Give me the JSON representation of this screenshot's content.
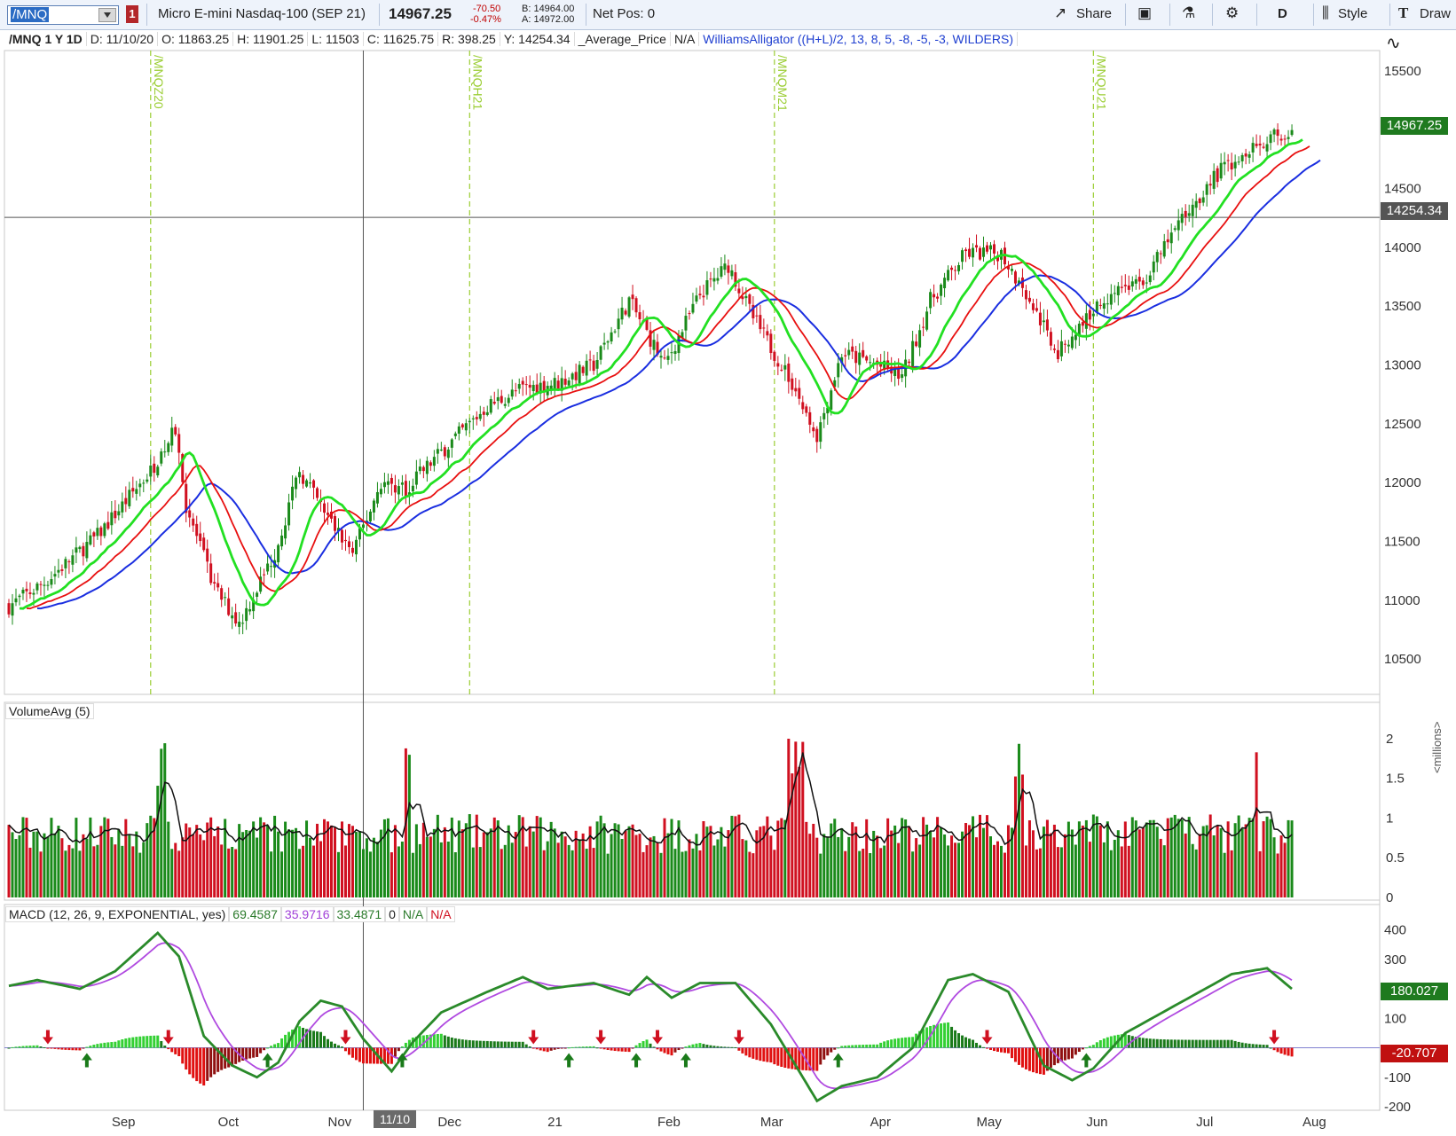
{
  "toolbar": {
    "symbol": "/MNQ",
    "link_badge": "1",
    "description": "Micro E-mini Nasdaq-100 (SEP 21)",
    "last": "14967.25",
    "change": "-70.50",
    "change_pct": "-0.47%",
    "bid": "B: 14964.00",
    "ask": "A: 14972.00",
    "net_pos": "Net Pos: 0",
    "share_label": "Share",
    "aggregation": "D",
    "style_label": "Style",
    "draw_label": "Draw"
  },
  "header": {
    "symbol_period": "/MNQ 1 Y 1D",
    "date": "D: 11/10/20",
    "open": "O: 11863.25",
    "high": "H: 11901.25",
    "low": "L: 11503",
    "close": "C: 11625.75",
    "range": "R: 398.25",
    "y": "Y: 14254.34",
    "avg_price": "_Average_Price",
    "na": "N/A",
    "alligator": "WilliamsAlligator ((H+L)/2, 13, 8, 5, -8, -5, -3, WILDERS)"
  },
  "colors": {
    "up": "#1a8a1a",
    "down": "#d01020",
    "jaw": "#1a2ee0",
    "teeth": "#e81010",
    "lips": "#22e022",
    "macd": "#2a8a2a",
    "signal": "#b04ae0",
    "expiration": "#9acd32"
  },
  "chart_data": {
    "type": "candlestick",
    "price_axis": {
      "ticks": [
        10500,
        11000,
        11500,
        12000,
        12500,
        13000,
        13500,
        14000,
        14500,
        15000,
        15500
      ],
      "range": [
        10200,
        15650
      ]
    },
    "month_labels": [
      "Sep",
      "Oct",
      "Nov",
      "Dec",
      "21",
      "Feb",
      "Mar",
      "Apr",
      "May",
      "Jun",
      "Jul",
      "Aug"
    ],
    "expirations": [
      "/MNQZ20",
      "/MNQH21",
      "/MNQM21",
      "/MNQU21"
    ],
    "cursor_date": "11/10",
    "cursor_price": "14254.34",
    "last_price_tag": "14967.25",
    "close_keypoints": [
      [
        0,
        10950
      ],
      [
        10,
        11150
      ],
      [
        25,
        11550
      ],
      [
        40,
        12100
      ],
      [
        47,
        12450
      ],
      [
        50,
        11800
      ],
      [
        58,
        11100
      ],
      [
        65,
        10800
      ],
      [
        75,
        11400
      ],
      [
        82,
        12100
      ],
      [
        90,
        11700
      ],
      [
        97,
        11400
      ],
      [
        105,
        12000
      ],
      [
        112,
        11950
      ],
      [
        120,
        12200
      ],
      [
        135,
        12650
      ],
      [
        145,
        12800
      ],
      [
        155,
        12850
      ],
      [
        165,
        13000
      ],
      [
        175,
        13550
      ],
      [
        185,
        13000
      ],
      [
        195,
        13600
      ],
      [
        203,
        13850
      ],
      [
        210,
        13400
      ],
      [
        220,
        12900
      ],
      [
        228,
        12400
      ],
      [
        235,
        13100
      ],
      [
        245,
        13000
      ],
      [
        252,
        12900
      ],
      [
        260,
        13550
      ],
      [
        270,
        13950
      ],
      [
        280,
        13950
      ],
      [
        288,
        13550
      ],
      [
        296,
        13100
      ],
      [
        304,
        13400
      ],
      [
        312,
        13650
      ],
      [
        320,
        13700
      ],
      [
        330,
        14200
      ],
      [
        340,
        14600
      ],
      [
        350,
        14850
      ],
      [
        358,
        14950
      ],
      [
        362,
        14967
      ]
    ],
    "volume": {
      "title": "VolumeAvg (5)",
      "unit": "<millions>",
      "ticks": [
        0,
        0.5,
        1,
        1.5,
        2
      ],
      "range": [
        0,
        2.2
      ]
    },
    "macd": {
      "params": "MACD (12, 26, 9, EXPONENTIAL, yes)",
      "value": "69.4587",
      "avg": "35.9716",
      "diff": "33.4871",
      "zero": "0",
      "na1": "N/A",
      "na2": "N/A",
      "ticks": [
        -200,
        -100,
        100,
        200,
        300,
        400
      ],
      "range": [
        -200,
        420
      ],
      "tag_value": "180.027",
      "tag_diff": "-20.707",
      "keypoints": [
        [
          0,
          210
        ],
        [
          8,
          230
        ],
        [
          20,
          200
        ],
        [
          30,
          260
        ],
        [
          42,
          390
        ],
        [
          48,
          310
        ],
        [
          55,
          40
        ],
        [
          63,
          -60
        ],
        [
          70,
          -100
        ],
        [
          76,
          -50
        ],
        [
          82,
          90
        ],
        [
          88,
          160
        ],
        [
          94,
          140
        ],
        [
          100,
          30
        ],
        [
          108,
          -80
        ],
        [
          114,
          20
        ],
        [
          122,
          120
        ],
        [
          135,
          190
        ],
        [
          145,
          240
        ],
        [
          152,
          200
        ],
        [
          165,
          220
        ],
        [
          175,
          180
        ],
        [
          180,
          240
        ],
        [
          187,
          170
        ],
        [
          195,
          220
        ],
        [
          205,
          220
        ],
        [
          215,
          80
        ],
        [
          222,
          -60
        ],
        [
          228,
          -180
        ],
        [
          235,
          -130
        ],
        [
          245,
          -100
        ],
        [
          255,
          0
        ],
        [
          265,
          230
        ],
        [
          272,
          250
        ],
        [
          282,
          190
        ],
        [
          292,
          -60
        ],
        [
          300,
          -110
        ],
        [
          306,
          -70
        ],
        [
          315,
          50
        ],
        [
          330,
          150
        ],
        [
          345,
          250
        ],
        [
          355,
          270
        ],
        [
          362,
          200
        ],
        [
          370,
          180
        ]
      ]
    }
  }
}
